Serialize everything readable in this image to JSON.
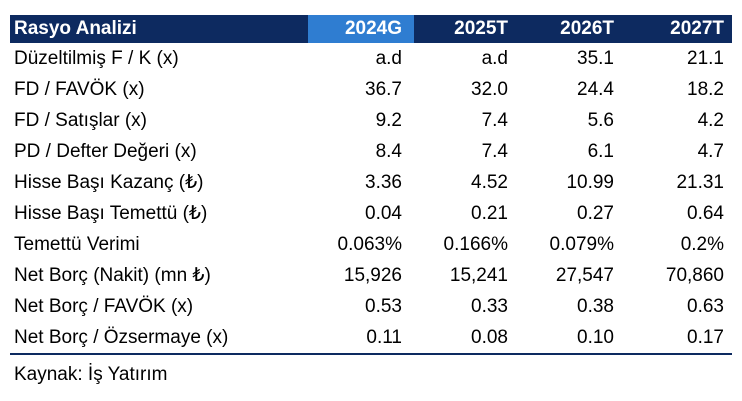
{
  "table": {
    "header_label": "Rasyo Analizi",
    "years": [
      "2024G",
      "2025T",
      "2026T",
      "2027T"
    ],
    "rows": [
      {
        "label": "Düzeltilmiş F / K (x)",
        "values": [
          "a.d",
          "a.d",
          "35.1",
          "21.1"
        ]
      },
      {
        "label": "FD / FAVÖK (x)",
        "values": [
          "36.7",
          "32.0",
          "24.4",
          "18.2"
        ]
      },
      {
        "label": "FD / Satışlar (x)",
        "values": [
          "9.2",
          "7.4",
          "5.6",
          "4.2"
        ]
      },
      {
        "label": "PD / Defter Değeri (x)",
        "values": [
          "8.4",
          "7.4",
          "6.1",
          "4.7"
        ]
      },
      {
        "label": "Hisse Başı Kazanç (₺)",
        "values": [
          "3.36",
          "4.52",
          "10.99",
          "21.31"
        ]
      },
      {
        "label": "Hisse Başı Temettü (₺)",
        "values": [
          "0.04",
          "0.21",
          "0.27",
          "0.64"
        ]
      },
      {
        "label": "Temettü Verimi",
        "values": [
          "0.063%",
          "0.166%",
          "0.079%",
          "0.2%"
        ]
      },
      {
        "label": "Net Borç (Nakit) (mn ₺)",
        "values": [
          "15,926",
          "15,241",
          "27,547",
          "70,860"
        ]
      },
      {
        "label": "Net Borç / FAVÖK (x)",
        "values": [
          "0.53",
          "0.33",
          "0.38",
          "0.63"
        ]
      },
      {
        "label": "Net Borç  / Özsermaye (x)",
        "values": [
          "0.11",
          "0.08",
          "0.10",
          "0.17"
        ]
      }
    ]
  },
  "source": "Kaynak: İş Yatırım",
  "colors": {
    "header_bg": "#0d2a60",
    "highlight_bg": "#2f7dd1",
    "header_text": "#ffffff"
  }
}
